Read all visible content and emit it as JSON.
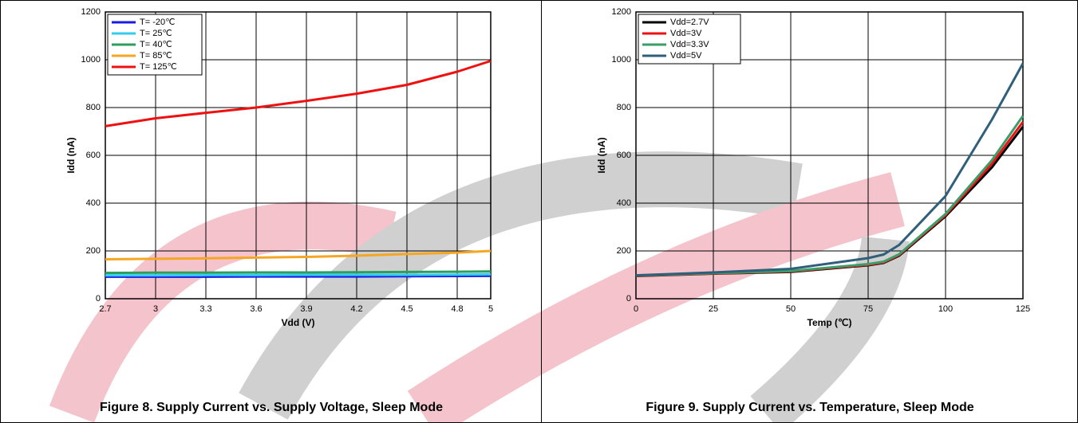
{
  "chart_data": [
    {
      "type": "line",
      "caption": "Figure 8. Supply Current vs. Supply Voltage, Sleep Mode",
      "x_label": "Vdd (V)",
      "y_label": "Idd (nA)",
      "x": [
        2.7,
        3,
        3.3,
        3.6,
        3.9,
        4.2,
        4.5,
        4.8,
        5
      ],
      "xlim": [
        2.7,
        5
      ],
      "xticks": [
        2.7,
        3,
        3.3,
        3.6,
        3.9,
        4.2,
        4.5,
        4.8,
        5
      ],
      "ylim": [
        0,
        1200
      ],
      "yticks": [
        0,
        200,
        400,
        600,
        800,
        1000,
        1200
      ],
      "grid": true,
      "legend": "upper-left",
      "series": [
        {
          "name": "T= -20℃",
          "color": "#1a1ae6",
          "values": [
            92,
            92,
            92,
            93,
            93,
            93,
            94,
            95,
            96
          ]
        },
        {
          "name": "T= 25℃",
          "color": "#33ccee",
          "values": [
            98,
            98,
            99,
            99,
            100,
            100,
            100,
            101,
            102
          ]
        },
        {
          "name": "T= 40℃",
          "color": "#2e9e5e",
          "values": [
            108,
            109,
            109,
            110,
            110,
            111,
            112,
            113,
            114
          ]
        },
        {
          "name": "T= 85℃",
          "color": "#f5a623",
          "values": [
            165,
            167,
            169,
            172,
            175,
            180,
            187,
            193,
            200
          ]
        },
        {
          "name": "T= 125℃",
          "color": "#ee1111",
          "values": [
            722,
            755,
            778,
            800,
            828,
            858,
            895,
            950,
            995
          ]
        }
      ]
    },
    {
      "type": "line",
      "caption": "Figure 9. Supply Current vs. Temperature, Sleep Mode",
      "x_label": "Temp (℃)",
      "y_label": "Idd (nA)",
      "x": [
        0,
        25,
        50,
        75,
        80,
        85,
        100,
        115,
        125
      ],
      "xlim": [
        0,
        125
      ],
      "xticks": [
        0,
        25,
        50,
        75,
        100,
        125
      ],
      "ylim": [
        0,
        1200
      ],
      "yticks": [
        0,
        200,
        400,
        600,
        800,
        1000,
        1200
      ],
      "grid": true,
      "legend": "upper-left",
      "series": [
        {
          "name": "Vdd=2.7V",
          "color": "#000000",
          "values": [
            95,
            105,
            112,
            140,
            150,
            180,
            345,
            550,
            720
          ]
        },
        {
          "name": "Vdd=3V",
          "color": "#ee1111",
          "values": [
            96,
            106,
            114,
            142,
            152,
            183,
            350,
            565,
            740
          ]
        },
        {
          "name": "Vdd=3.3V",
          "color": "#3a9e6a",
          "values": [
            97,
            107,
            116,
            145,
            155,
            186,
            355,
            580,
            765
          ]
        },
        {
          "name": "Vdd=5V",
          "color": "#2f5f7a",
          "values": [
            98,
            110,
            125,
            170,
            185,
            225,
            430,
            750,
            985
          ]
        }
      ]
    }
  ]
}
